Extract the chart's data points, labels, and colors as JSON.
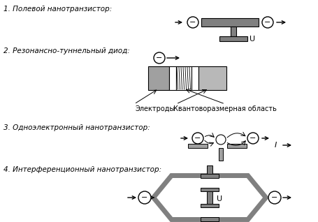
{
  "bg_color": "#ffffff",
  "gray_dark": "#808080",
  "gray_light": "#b8b8b8",
  "gray_mid": "#a0a0a0",
  "text_color": "#000000",
  "label1": "1. Полевой нанотранзистор:",
  "label2": "2. Резонансно-туннельный диод:",
  "label3": "3. Одноэлектронный нанотранзистор:",
  "label4": "4. Интерференционный нанотранзистор:",
  "electrodes_label": "Электроды",
  "quantum_label": "Квантоворазмерная область",
  "current_label": "I"
}
